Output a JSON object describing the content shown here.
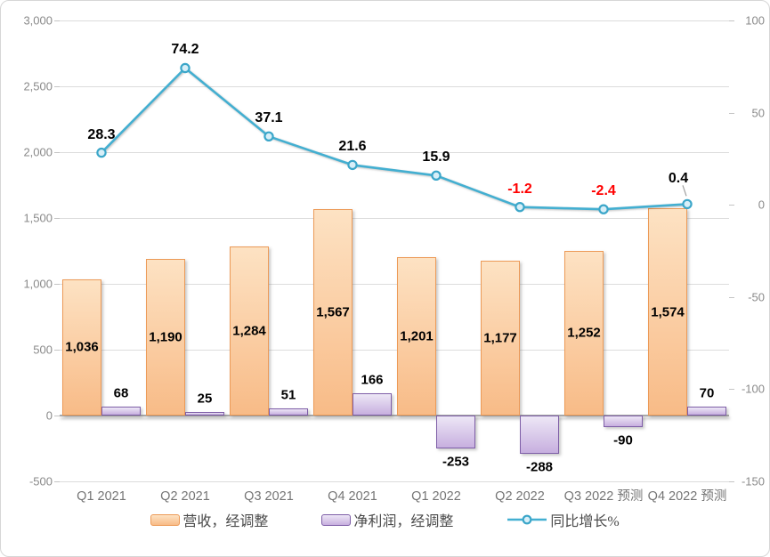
{
  "chart_data": {
    "type": "combo",
    "title": "",
    "categories": [
      "Q1 2021",
      "Q2 2021",
      "Q3 2021",
      "Q4 2021",
      "Q1 2022",
      "Q2 2022",
      "Q3 2022 预测",
      "Q4 2022 预测"
    ],
    "series": [
      {
        "name": "营收，经调整",
        "type": "bar",
        "axis": "left",
        "values": [
          1036,
          1190,
          1284,
          1567,
          1201,
          1177,
          1252,
          1574
        ],
        "labels": [
          "1,036",
          "1,190",
          "1,284",
          "1,567",
          "1,201",
          "1,177",
          "1,252",
          "1,574"
        ],
        "fill_top": "#FDE2C3",
        "fill_bottom": "#F8BB87",
        "border": "#EC9A57",
        "label_color": "#000000"
      },
      {
        "name": "净利润，经调整",
        "type": "bar",
        "axis": "left",
        "values": [
          68,
          25,
          51,
          166,
          -253,
          -288,
          -90,
          70
        ],
        "labels": [
          "68",
          "25",
          "51",
          "166",
          "-253",
          "-288",
          "-90",
          "70"
        ],
        "fill_top": "#EDE7F6",
        "fill_bottom": "#C7AFDF",
        "border": "#7E5EA7",
        "label_color": "#000000"
      },
      {
        "name": "同比增长%",
        "type": "line",
        "axis": "right",
        "values": [
          28.3,
          74.2,
          37.1,
          21.6,
          15.9,
          -1.2,
          -2.4,
          0.4
        ],
        "labels": [
          "28.3",
          "74.2",
          "37.1",
          "21.6",
          "15.9",
          "-1.2",
          "-2.4",
          "0.4"
        ],
        "label_colors": [
          "#000000",
          "#000000",
          "#000000",
          "#000000",
          "#000000",
          "#FF0000",
          "#FF0000",
          "#000000"
        ],
        "color": "#43AFD1",
        "marker_fill": "#D8EFF8",
        "marker_stroke": "#3BA6C9",
        "last_label_has_leader": true
      }
    ],
    "left_axis": {
      "min": -500,
      "max": 3000,
      "ticks": [
        3000,
        2500,
        2000,
        1500,
        1000,
        500,
        0,
        -500
      ],
      "tick_labels": [
        "3,000",
        "2,500",
        "2,000",
        "1,500",
        "1,000",
        "500",
        "0",
        "-500"
      ]
    },
    "right_axis": {
      "min": -150,
      "max": 100,
      "ticks": [
        100,
        50,
        0,
        -50,
        -100,
        -150
      ],
      "tick_labels": [
        "100",
        "50",
        "0",
        "-50",
        "-100",
        "-150"
      ]
    },
    "grid": true,
    "legend_position": "bottom",
    "styles": {
      "gridline": "#DCDCDC",
      "axis_line": "#A9A9A9",
      "axis_text": "#8A8A8A",
      "category_text": "#757575",
      "negative_label_red": "#FF0000"
    }
  }
}
